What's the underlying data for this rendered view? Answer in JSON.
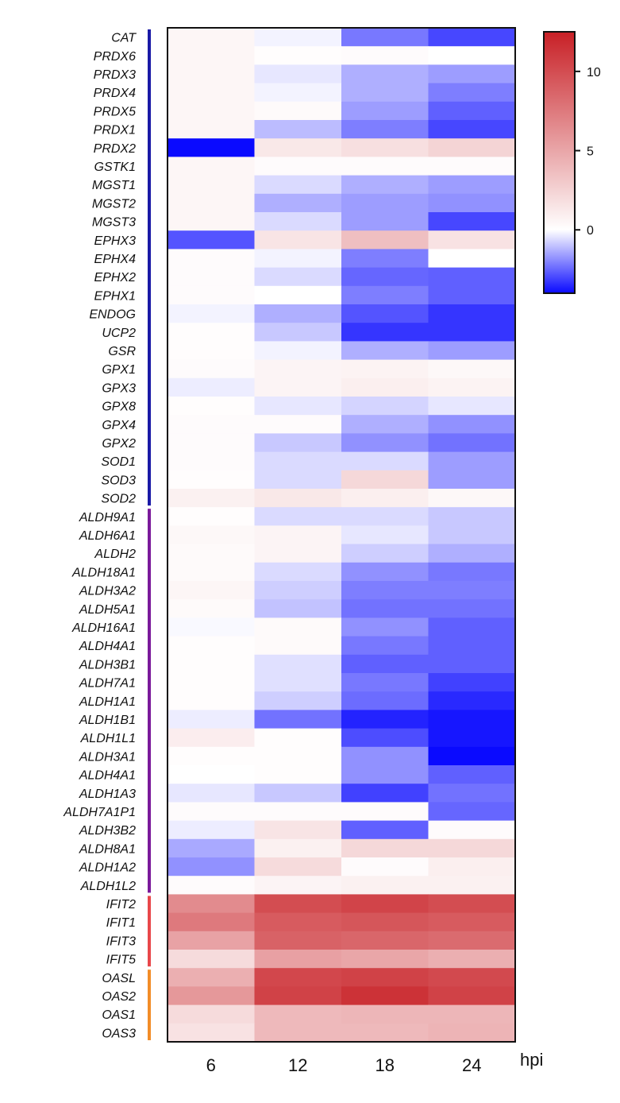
{
  "chart_data": {
    "type": "heatmap",
    "x": [
      "6",
      "12",
      "18",
      "24"
    ],
    "x_unit": "hpi",
    "rows": [
      "CAT",
      "PRDX6",
      "PRDX3",
      "PRDX4",
      "PRDX5",
      "PRDX1",
      "PRDX2",
      "GSTK1",
      "MGST1",
      "MGST2",
      "MGST3",
      "EPHX3",
      "EPHX4",
      "EPHX2",
      "EPHX1",
      "ENDOG",
      "UCP2",
      "GSR",
      "GPX1",
      "GPX3",
      "GPX8",
      "GPX4",
      "GPX2",
      "SOD1",
      "SOD3",
      "SOD2",
      "ALDH9A1",
      "ALDH6A1",
      "ALDH2",
      "ALDH18A1",
      "ALDH3A2",
      "ALDH5A1",
      "ALDH16A1",
      "ALDH4A1",
      "ALDH3B1",
      "ALDH7A1",
      "ALDH1A1",
      "ALDH1B1",
      "ALDH1L1",
      "ALDH3A1",
      "ALDH4A1",
      "ALDH1A3",
      "ALDH7A1P1",
      "ALDH3B2",
      "ALDH8A1",
      "ALDH1A2",
      "ALDH1L2",
      "IFIT2",
      "IFIT1",
      "IFIT3",
      "IFIT5",
      "OASL",
      "OAS2",
      "OAS1",
      "OAS3"
    ],
    "values": [
      [
        0.5,
        -0.2,
        -2.2,
        -3.0
      ],
      [
        0.5,
        0.1,
        0.2,
        0.0
      ],
      [
        0.5,
        -0.4,
        -1.3,
        -1.6
      ],
      [
        0.5,
        -0.2,
        -1.3,
        -2.1
      ],
      [
        0.5,
        0.3,
        -1.6,
        -2.6
      ],
      [
        0.5,
        -1.1,
        -2.1,
        -3.0
      ],
      [
        -4.0,
        1.3,
        1.8,
        2.4
      ],
      [
        0.5,
        0.2,
        0.2,
        0.2
      ],
      [
        0.5,
        -0.6,
        -1.3,
        -1.6
      ],
      [
        0.5,
        -1.3,
        -1.6,
        -1.8
      ],
      [
        0.5,
        -0.6,
        -1.6,
        -3.0
      ],
      [
        -2.8,
        1.5,
        3.6,
        1.6
      ],
      [
        0.2,
        -0.2,
        -2.1,
        0.0
      ],
      [
        0.2,
        -0.6,
        -2.5,
        -2.6
      ],
      [
        0.2,
        0.0,
        -2.1,
        -2.6
      ],
      [
        -0.2,
        -1.3,
        -2.8,
        -3.3
      ],
      [
        0.1,
        -0.9,
        -3.3,
        -3.3
      ],
      [
        0.1,
        -0.2,
        -1.3,
        -1.6
      ],
      [
        0.2,
        0.6,
        0.7,
        0.4
      ],
      [
        -0.3,
        0.6,
        0.9,
        0.7
      ],
      [
        0.1,
        -0.4,
        -0.7,
        -0.4
      ],
      [
        0.2,
        0.2,
        -1.3,
        -1.8
      ],
      [
        0.2,
        -0.9,
        -1.8,
        -2.3
      ],
      [
        0.2,
        -0.6,
        -0.6,
        -1.6
      ],
      [
        0.1,
        -0.6,
        2.2,
        -1.6
      ],
      [
        0.8,
        1.3,
        0.9,
        0.4
      ],
      [
        0.1,
        -0.6,
        -0.6,
        -0.9
      ],
      [
        0.4,
        0.6,
        -0.4,
        -0.9
      ],
      [
        0.3,
        0.6,
        -0.8,
        -1.3
      ],
      [
        0.3,
        -0.6,
        -1.8,
        -2.2
      ],
      [
        0.5,
        -0.8,
        -2.1,
        -2.1
      ],
      [
        0.3,
        -1.0,
        -2.3,
        -2.3
      ],
      [
        -0.1,
        0.3,
        -1.8,
        -2.6
      ],
      [
        0.1,
        0.3,
        -2.2,
        -2.6
      ],
      [
        0.1,
        -0.5,
        -2.6,
        -2.6
      ],
      [
        0.1,
        -0.5,
        -2.2,
        -3.1
      ],
      [
        0.1,
        -0.8,
        -2.4,
        -3.5
      ],
      [
        -0.3,
        -2.3,
        -3.6,
        -3.8
      ],
      [
        1.0,
        0.1,
        -2.9,
        -3.8
      ],
      [
        0.1,
        0.1,
        -1.8,
        -4.0
      ],
      [
        0.0,
        0.1,
        -1.8,
        -2.6
      ],
      [
        -0.4,
        -0.9,
        -3.1,
        -2.3
      ],
      [
        0.2,
        0.2,
        0.2,
        -2.5
      ],
      [
        -0.3,
        1.5,
        -2.6,
        0.2
      ],
      [
        -1.4,
        0.8,
        2.2,
        2.2
      ],
      [
        -1.8,
        2.0,
        0.2,
        0.9
      ],
      [
        0.2,
        0.6,
        0.8,
        0.8
      ],
      [
        6.5,
        10.0,
        10.5,
        10.0
      ],
      [
        7.5,
        9.2,
        9.5,
        9.2
      ],
      [
        5.2,
        8.8,
        8.6,
        8.3
      ],
      [
        2.0,
        5.3,
        5.0,
        4.5
      ],
      [
        4.5,
        10.3,
        10.6,
        10.2
      ],
      [
        5.8,
        10.6,
        11.5,
        10.6
      ],
      [
        2.0,
        3.9,
        4.1,
        4.1
      ],
      [
        1.6,
        3.9,
        3.9,
        4.2
      ]
    ],
    "colorbar": {
      "min": -4,
      "max": 12.5,
      "ticks": [
        10,
        5,
        0
      ],
      "tick_labels": [
        "10",
        "5",
        "0"
      ]
    },
    "group_bars": [
      {
        "from": 0,
        "to": 25,
        "color": "#1a1aa6"
      },
      {
        "from": 26,
        "to": 46,
        "color": "#7a1a9a"
      },
      {
        "from": 47,
        "to": 50,
        "color": "#e8474a"
      },
      {
        "from": 51,
        "to": 54,
        "color": "#f28c28"
      }
    ]
  }
}
